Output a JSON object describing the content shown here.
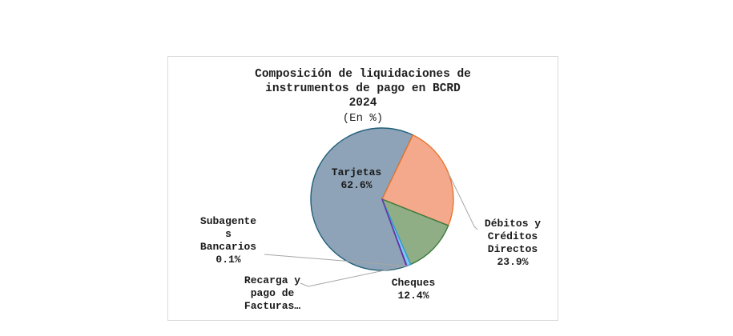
{
  "chart_data": {
    "type": "pie",
    "title_lines": [
      "Composición de liquidaciones de",
      "instrumentos de pago en BCRD",
      "2024"
    ],
    "subtitle": "(En %)",
    "slices": [
      {
        "label_lines": [
          "Tarjetas"
        ],
        "value": 62.6,
        "value_label": "62.6%",
        "color": "#8ea3b7",
        "stroke": "#1f5f7a"
      },
      {
        "label_lines": [
          "Débitos y",
          "Créditos",
          "Directos"
        ],
        "value": 23.9,
        "value_label": "23.9%",
        "color": "#f4a98c",
        "stroke": "#e8742d"
      },
      {
        "label_lines": [
          "Cheques"
        ],
        "value": 12.4,
        "value_label": "12.4%",
        "color": "#8fae86",
        "stroke": "#3b7a3b"
      },
      {
        "label_lines": [
          "Recarga y",
          "pago de",
          "Facturas…"
        ],
        "value": 0.9,
        "value_label": "",
        "color": "#7fc8ef",
        "stroke": "#2f9fd8"
      },
      {
        "label_lines": [
          "Subagente",
          "s",
          "Bancarios"
        ],
        "value": 0.1,
        "value_label": "0.1%",
        "color": "#7a4fb0",
        "stroke": "#6a2fa8"
      }
    ]
  }
}
